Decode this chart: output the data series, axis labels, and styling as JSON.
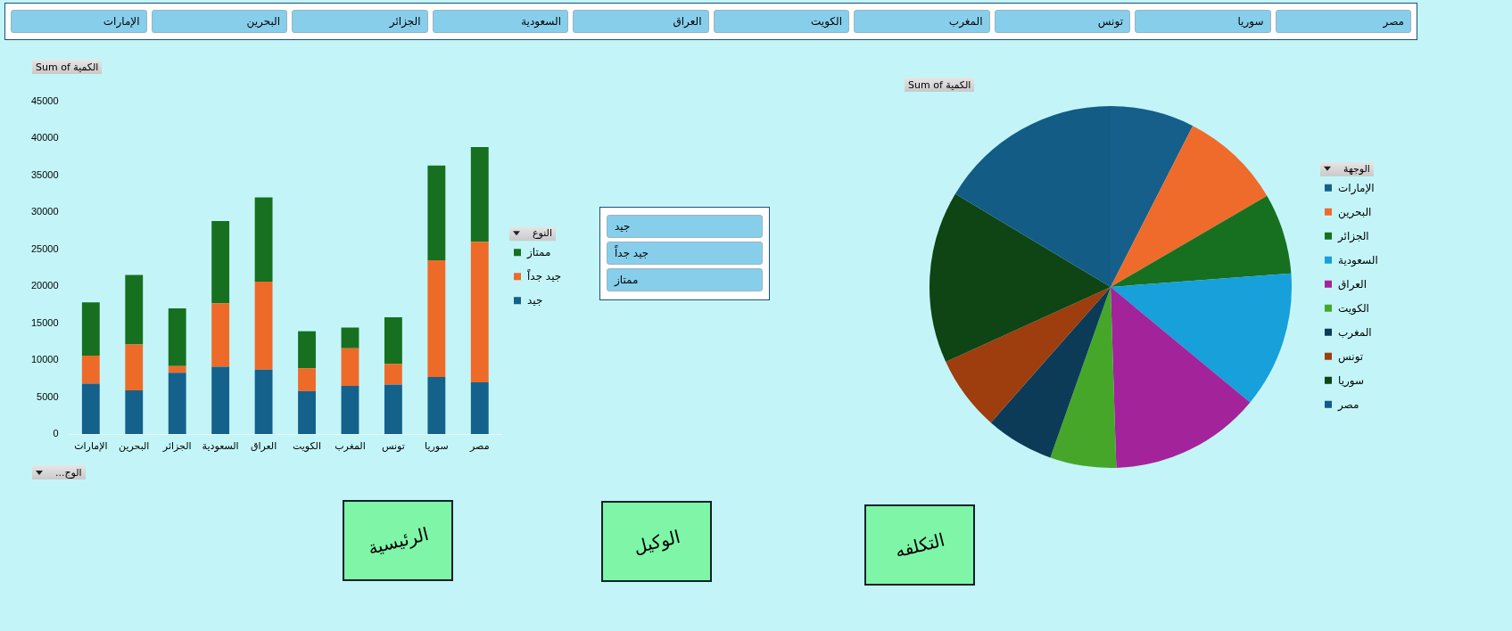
{
  "chart_data": [
    {
      "type": "other",
      "annotations": [
        "الإمارات",
        "البحرين",
        "الجزائر",
        "السعودية",
        "العراق",
        "الكويت",
        "المغرب",
        "تونس",
        "سوريا",
        "مصر"
      ]
    },
    {
      "type": "bar",
      "title": "Sum of الكمية",
      "xlabel": "الوج...",
      "legend_title": "النوع",
      "legend": "right",
      "stacked": true,
      "categories": [
        "الإمارات",
        "البحرين",
        "الجزائر",
        "السعودية",
        "العراق",
        "الكويت",
        "المغرب",
        "تونس",
        "سوريا",
        "مصر"
      ],
      "series": [
        {
          "name": "جيد",
          "color": "#14618b",
          "values": [
            6800,
            5900,
            8300,
            9100,
            8700,
            5800,
            6500,
            6700,
            7700,
            7000
          ]
        },
        {
          "name": "جيد جداً",
          "color": "#ee6a28",
          "values": [
            3800,
            6200,
            900,
            8600,
            11900,
            3100,
            5100,
            2800,
            15800,
            19000
          ]
        },
        {
          "name": "ممتاز",
          "color": "#16701f",
          "values": [
            7200,
            9400,
            7800,
            11100,
            11400,
            5000,
            2800,
            6300,
            12800,
            12800
          ]
        }
      ],
      "ylim": [
        0,
        45000
      ],
      "yticks": [
        0,
        5000,
        10000,
        15000,
        20000,
        25000,
        30000,
        35000,
        40000,
        45000
      ]
    },
    {
      "type": "other",
      "annotations": [
        "جيد",
        "جيد جداً",
        "ممتاز"
      ]
    },
    {
      "type": "pie",
      "title": "Sum of الكمية",
      "legend_title": "الوجهة",
      "legend": "right",
      "categories": [
        "الإمارات",
        "البحرين",
        "الجزائر",
        "السعودية",
        "العراق",
        "الكويت",
        "المغرب",
        "تونس",
        "سوريا",
        "مصر"
      ],
      "values": [
        7.5,
        9.1,
        7.2,
        12.2,
        13.5,
        5.9,
        6.1,
        6.7,
        15.4,
        16.4
      ],
      "colors": [
        "#155f8a",
        "#ef6b2b",
        "#17701f",
        "#17a0da",
        "#a3239b",
        "#46a62a",
        "#0c3b57",
        "#9e3d0e",
        "#0f4414",
        "#125c86"
      ]
    },
    {
      "type": "other",
      "annotations": [
        "الرئيسية",
        "الوكيل",
        "التكلفه"
      ]
    }
  ]
}
